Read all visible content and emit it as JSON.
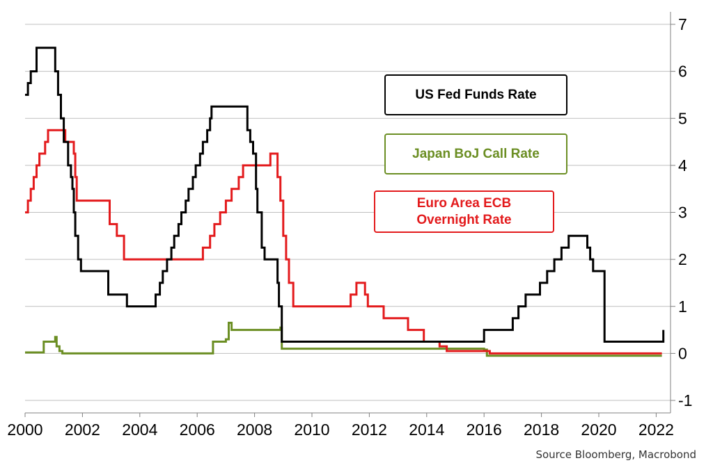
{
  "chart_data": {
    "type": "line",
    "title": "",
    "xlabel": "",
    "ylabel": "",
    "xlim": [
      2000,
      2022.5
    ],
    "ylim": [
      -1,
      7
    ],
    "x_ticks": [
      "2000",
      "2002",
      "2004",
      "2006",
      "2008",
      "2010",
      "2012",
      "2014",
      "2016",
      "2018",
      "2020",
      "2022"
    ],
    "y_ticks": [
      "7",
      "6",
      "5",
      "4",
      "3",
      "2",
      "1",
      "0",
      "-1"
    ],
    "y_axis_side": "right",
    "grid": "horizontal",
    "series": [
      {
        "name": "US Fed Funds Rate",
        "color": "#000000",
        "points": [
          [
            2000.0,
            5.5
          ],
          [
            2000.1,
            5.75
          ],
          [
            2000.2,
            6.0
          ],
          [
            2000.4,
            6.5
          ],
          [
            2001.0,
            6.5
          ],
          [
            2001.05,
            6.0
          ],
          [
            2001.15,
            5.5
          ],
          [
            2001.25,
            5.0
          ],
          [
            2001.35,
            4.5
          ],
          [
            2001.5,
            4.0
          ],
          [
            2001.6,
            3.75
          ],
          [
            2001.65,
            3.5
          ],
          [
            2001.7,
            3.0
          ],
          [
            2001.75,
            2.5
          ],
          [
            2001.85,
            2.0
          ],
          [
            2001.95,
            1.75
          ],
          [
            2002.85,
            1.75
          ],
          [
            2002.9,
            1.25
          ],
          [
            2003.5,
            1.25
          ],
          [
            2003.55,
            1.0
          ],
          [
            2004.5,
            1.0
          ],
          [
            2004.55,
            1.25
          ],
          [
            2004.7,
            1.5
          ],
          [
            2004.8,
            1.75
          ],
          [
            2004.95,
            2.0
          ],
          [
            2005.1,
            2.25
          ],
          [
            2005.2,
            2.5
          ],
          [
            2005.35,
            2.75
          ],
          [
            2005.45,
            3.0
          ],
          [
            2005.6,
            3.25
          ],
          [
            2005.7,
            3.5
          ],
          [
            2005.85,
            3.75
          ],
          [
            2005.95,
            4.0
          ],
          [
            2006.1,
            4.25
          ],
          [
            2006.2,
            4.5
          ],
          [
            2006.35,
            4.75
          ],
          [
            2006.45,
            5.0
          ],
          [
            2006.5,
            5.25
          ],
          [
            2007.7,
            5.25
          ],
          [
            2007.75,
            4.75
          ],
          [
            2007.85,
            4.5
          ],
          [
            2007.95,
            4.25
          ],
          [
            2008.05,
            3.5
          ],
          [
            2008.1,
            3.0
          ],
          [
            2008.25,
            2.25
          ],
          [
            2008.35,
            2.0
          ],
          [
            2008.75,
            2.0
          ],
          [
            2008.8,
            1.5
          ],
          [
            2008.85,
            1.0
          ],
          [
            2008.95,
            0.25
          ],
          [
            2015.95,
            0.25
          ],
          [
            2016.0,
            0.5
          ],
          [
            2016.95,
            0.5
          ],
          [
            2017.0,
            0.75
          ],
          [
            2017.2,
            1.0
          ],
          [
            2017.45,
            1.25
          ],
          [
            2017.95,
            1.5
          ],
          [
            2018.2,
            1.75
          ],
          [
            2018.45,
            2.0
          ],
          [
            2018.7,
            2.25
          ],
          [
            2018.95,
            2.5
          ],
          [
            2019.55,
            2.5
          ],
          [
            2019.6,
            2.25
          ],
          [
            2019.7,
            2.0
          ],
          [
            2019.8,
            1.75
          ],
          [
            2020.15,
            1.75
          ],
          [
            2020.2,
            0.25
          ],
          [
            2022.2,
            0.25
          ],
          [
            2022.25,
            0.5
          ]
        ]
      },
      {
        "name": "Japan BoJ Call Rate",
        "color": "#6b8e23",
        "points": [
          [
            2000.0,
            0.02
          ],
          [
            2000.6,
            0.02
          ],
          [
            2000.65,
            0.25
          ],
          [
            2001.0,
            0.25
          ],
          [
            2001.05,
            0.35
          ],
          [
            2001.1,
            0.15
          ],
          [
            2001.2,
            0.05
          ],
          [
            2001.3,
            0.0
          ],
          [
            2006.5,
            0.0
          ],
          [
            2006.55,
            0.25
          ],
          [
            2007.0,
            0.3
          ],
          [
            2007.1,
            0.65
          ],
          [
            2007.2,
            0.5
          ],
          [
            2008.0,
            0.5
          ],
          [
            2008.9,
            0.55
          ],
          [
            2008.95,
            0.1
          ],
          [
            2012.0,
            0.1
          ],
          [
            2016.0,
            0.08
          ],
          [
            2016.1,
            -0.05
          ],
          [
            2022.2,
            -0.05
          ]
        ]
      },
      {
        "name": "Euro Area ECB Overnight Rate",
        "color": "#e31a1c",
        "points": [
          [
            2000.0,
            3.0
          ],
          [
            2000.1,
            3.25
          ],
          [
            2000.2,
            3.5
          ],
          [
            2000.3,
            3.75
          ],
          [
            2000.4,
            4.0
          ],
          [
            2000.5,
            4.25
          ],
          [
            2000.7,
            4.5
          ],
          [
            2000.8,
            4.75
          ],
          [
            2001.35,
            4.75
          ],
          [
            2001.4,
            4.5
          ],
          [
            2001.7,
            4.25
          ],
          [
            2001.75,
            3.75
          ],
          [
            2001.8,
            3.25
          ],
          [
            2002.9,
            3.25
          ],
          [
            2002.95,
            2.75
          ],
          [
            2003.2,
            2.5
          ],
          [
            2003.45,
            2.0
          ],
          [
            2006.0,
            2.0
          ],
          [
            2006.2,
            2.25
          ],
          [
            2006.45,
            2.5
          ],
          [
            2006.6,
            2.75
          ],
          [
            2006.8,
            3.0
          ],
          [
            2007.0,
            3.25
          ],
          [
            2007.2,
            3.5
          ],
          [
            2007.45,
            3.75
          ],
          [
            2007.6,
            4.0
          ],
          [
            2008.5,
            4.0
          ],
          [
            2008.55,
            4.25
          ],
          [
            2008.75,
            4.25
          ],
          [
            2008.8,
            3.75
          ],
          [
            2008.9,
            3.25
          ],
          [
            2009.0,
            2.5
          ],
          [
            2009.1,
            2.0
          ],
          [
            2009.2,
            1.5
          ],
          [
            2009.35,
            1.0
          ],
          [
            2011.3,
            1.0
          ],
          [
            2011.35,
            1.25
          ],
          [
            2011.55,
            1.5
          ],
          [
            2011.85,
            1.25
          ],
          [
            2011.95,
            1.0
          ],
          [
            2012.5,
            0.75
          ],
          [
            2013.35,
            0.5
          ],
          [
            2013.9,
            0.25
          ],
          [
            2014.45,
            0.15
          ],
          [
            2014.7,
            0.05
          ],
          [
            2016.2,
            0.0
          ],
          [
            2022.2,
            0.0
          ]
        ]
      }
    ],
    "legend": [
      {
        "label": "US Fed Funds Rate",
        "color": "#000000"
      },
      {
        "label": "Japan BoJ Call Rate",
        "color": "#6b8e23"
      },
      {
        "label": "Euro Area ECB\nOvernight Rate",
        "color": "#e31a1c"
      }
    ],
    "legend_placement": "upper-right, stacked boxes",
    "source_note": "Source Bloomberg, Macrobond"
  }
}
